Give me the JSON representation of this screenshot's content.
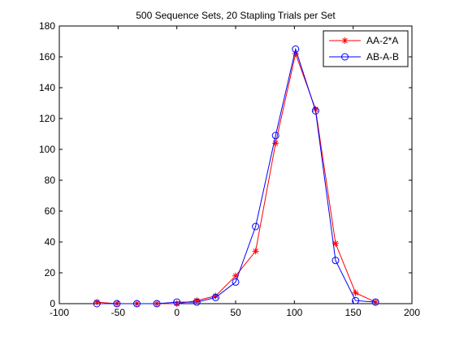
{
  "chart_data": {
    "type": "line",
    "title": "500 Sequence Sets, 20 Stapling Trials per Set",
    "xlabel": "",
    "ylabel": "",
    "xlim": [
      -100,
      200
    ],
    "ylim": [
      0,
      180
    ],
    "xticks": [
      -100,
      -50,
      0,
      50,
      100,
      150,
      200
    ],
    "yticks": [
      0,
      20,
      40,
      60,
      80,
      100,
      120,
      140,
      160,
      180
    ],
    "grid": false,
    "legend_position": "top-right",
    "series": [
      {
        "name": "AA-2*A",
        "color": "#ff0000",
        "marker": "star",
        "x": [
          -68,
          -51,
          -34,
          -17,
          0,
          17,
          33,
          50,
          67,
          84,
          101,
          118,
          135,
          152,
          169
        ],
        "y": [
          1,
          0,
          0,
          0,
          0,
          2,
          5,
          18,
          34,
          104,
          162,
          126,
          39,
          7,
          1
        ]
      },
      {
        "name": "AB-A-B",
        "color": "#0000ff",
        "marker": "circle",
        "x": [
          -68,
          -51,
          -34,
          -17,
          0,
          17,
          33,
          50,
          67,
          84,
          101,
          118,
          135,
          152,
          169
        ],
        "y": [
          0,
          0,
          0,
          0,
          1,
          1,
          4,
          14,
          50,
          109,
          165,
          125,
          28,
          2,
          1
        ]
      }
    ]
  }
}
